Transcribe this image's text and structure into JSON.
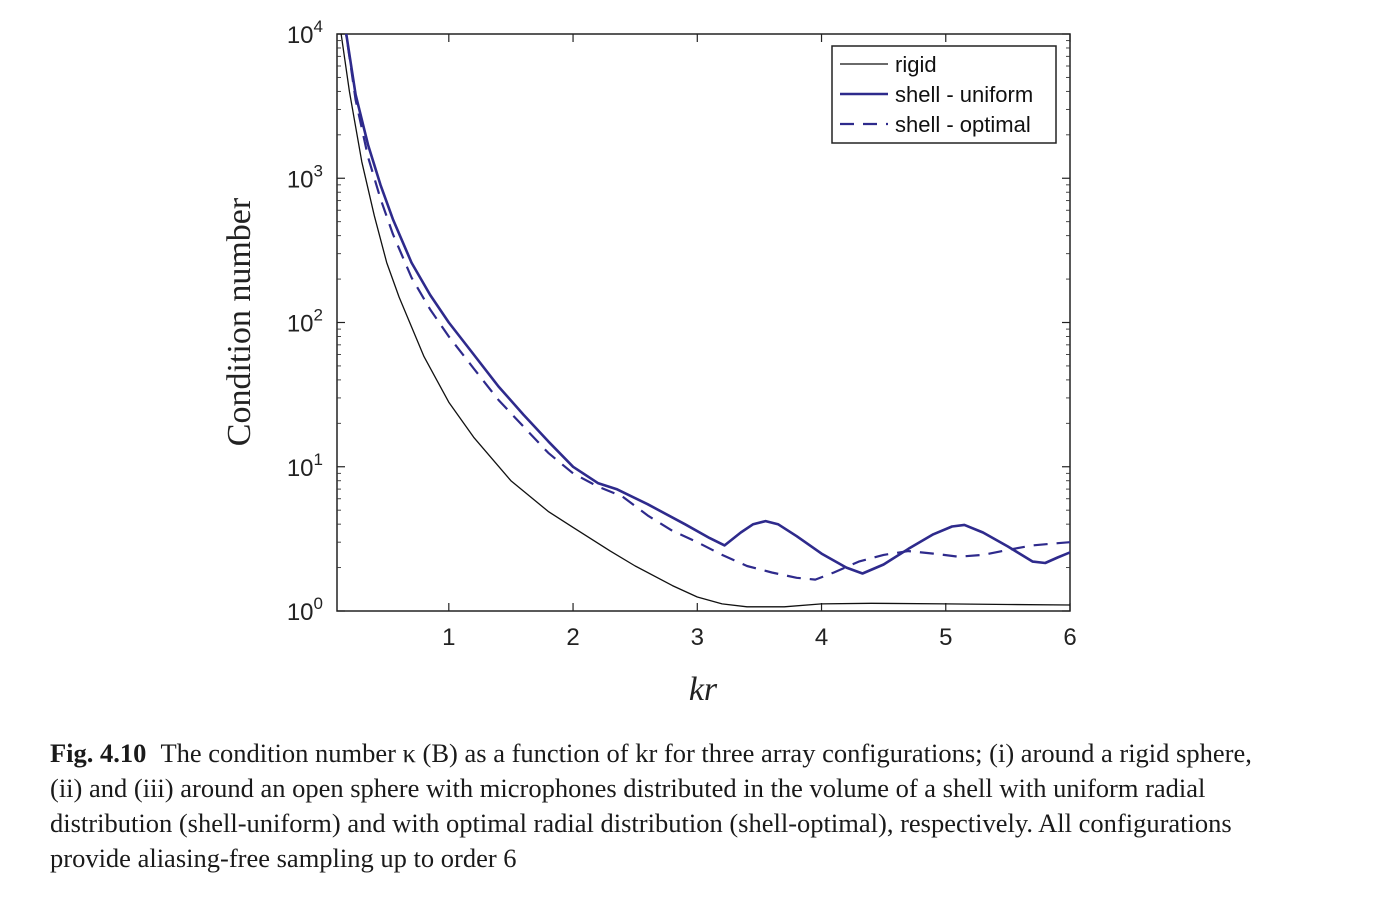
{
  "chart_data": {
    "type": "line",
    "title": "",
    "xlabel": "kr",
    "ylabel": "Condition number",
    "xlim": [
      0.1,
      6
    ],
    "ylim": [
      1,
      10000
    ],
    "yscale": "log",
    "grid": false,
    "legend_position": "top-right",
    "xticks": [
      1,
      2,
      3,
      4,
      5,
      6
    ],
    "xtick_labels": [
      "1",
      "2",
      "3",
      "4",
      "5",
      "6"
    ],
    "yticks": [
      1,
      10,
      100,
      1000,
      10000
    ],
    "ytick_labels": [
      {
        "base": "10",
        "exp": "0"
      },
      {
        "base": "10",
        "exp": "1"
      },
      {
        "base": "10",
        "exp": "2"
      },
      {
        "base": "10",
        "exp": "3"
      },
      {
        "base": "10",
        "exp": "4"
      }
    ],
    "series": [
      {
        "name": "rigid",
        "color": "#111111",
        "style": "solid",
        "x": [
          0.12,
          0.2,
          0.3,
          0.4,
          0.5,
          0.6,
          0.8,
          1.0,
          1.2,
          1.5,
          1.8,
          2.0,
          2.3,
          2.5,
          2.8,
          3.0,
          3.2,
          3.4,
          3.7,
          4.0,
          4.4,
          5.0,
          5.5,
          6.0
        ],
        "y": [
          12000,
          4000,
          1300,
          550,
          260,
          150,
          58,
          28,
          16,
          8.0,
          4.9,
          3.8,
          2.6,
          2.05,
          1.5,
          1.25,
          1.12,
          1.07,
          1.07,
          1.12,
          1.13,
          1.12,
          1.11,
          1.1
        ]
      },
      {
        "name": "shell - uniform",
        "color": "#2e2a8c",
        "style": "solid",
        "x": [
          0.16,
          0.25,
          0.35,
          0.45,
          0.55,
          0.7,
          0.85,
          1.0,
          1.2,
          1.4,
          1.6,
          1.8,
          2.0,
          2.2,
          2.35,
          2.6,
          2.9,
          3.1,
          3.22,
          3.35,
          3.45,
          3.55,
          3.65,
          3.8,
          4.0,
          4.2,
          4.33,
          4.5,
          4.7,
          4.9,
          5.05,
          5.15,
          5.3,
          5.5,
          5.7,
          5.8,
          5.9,
          6.0
        ],
        "y": [
          12000,
          3800,
          1700,
          900,
          520,
          260,
          155,
          100,
          60,
          36,
          23,
          15,
          10,
          7.7,
          7.0,
          5.5,
          4.0,
          3.2,
          2.85,
          3.5,
          4.0,
          4.2,
          4.0,
          3.3,
          2.5,
          2.0,
          1.82,
          2.1,
          2.7,
          3.4,
          3.85,
          3.95,
          3.5,
          2.8,
          2.2,
          2.15,
          2.35,
          2.55
        ]
      },
      {
        "name": "shell - optimal",
        "color": "#2e2a8c",
        "style": "dashed",
        "x": [
          0.16,
          0.25,
          0.35,
          0.45,
          0.55,
          0.7,
          0.85,
          1.0,
          1.2,
          1.4,
          1.6,
          1.8,
          2.0,
          2.2,
          2.4,
          2.6,
          2.8,
          3.0,
          3.2,
          3.4,
          3.6,
          3.8,
          3.95,
          4.1,
          4.3,
          4.5,
          4.7,
          4.9,
          5.1,
          5.3,
          5.5,
          5.7,
          5.9,
          6.0
        ],
        "y": [
          12000,
          3500,
          1400,
          720,
          410,
          205,
          123,
          80,
          48,
          29,
          19,
          12.5,
          9.0,
          7.3,
          6.2,
          4.6,
          3.6,
          3.0,
          2.45,
          2.05,
          1.85,
          1.7,
          1.65,
          1.85,
          2.2,
          2.45,
          2.6,
          2.5,
          2.38,
          2.45,
          2.65,
          2.85,
          2.95,
          3.0
        ]
      }
    ]
  },
  "caption": {
    "label": "Fig. 4.10",
    "text": "The condition number κ (B) as a function of kr for three array configurations; (i) around a rigid sphere, (ii) and (iii) around an open sphere with microphones distributed in the volume of a shell with uniform radial distribution (shell-uniform) and with optimal radial distribution (shell-optimal), respectively. All configurations provide aliasing-free sampling up to order 6"
  }
}
